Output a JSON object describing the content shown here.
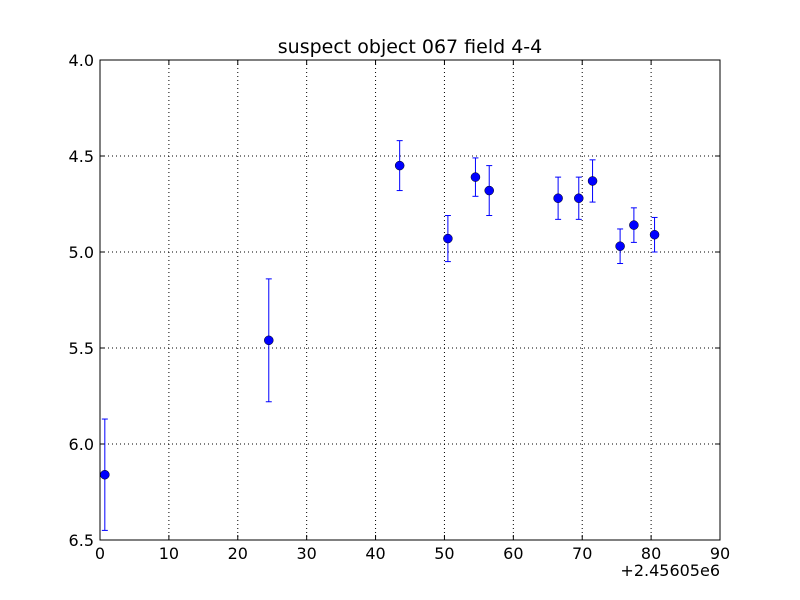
{
  "chart_data": {
    "type": "scatter",
    "title": "suspect object 067 field 4-4",
    "xlabel": "",
    "ylabel": "",
    "x_offset_label": "+2.45605e6",
    "xlim": [
      0,
      90
    ],
    "ylim": [
      4.0,
      6.5
    ],
    "y_inverted": true,
    "grid": true,
    "x_ticks": [
      0,
      10,
      20,
      30,
      40,
      50,
      60,
      70,
      80,
      90
    ],
    "x_tick_labels": [
      "0",
      "10",
      "20",
      "30",
      "40",
      "50",
      "60",
      "70",
      "80",
      "90"
    ],
    "y_ticks": [
      4.0,
      4.5,
      5.0,
      5.5,
      6.0,
      6.5
    ],
    "y_tick_labels": [
      "4.0",
      "4.5",
      "5.0",
      "5.5",
      "6.0",
      "6.5"
    ],
    "marker_color": "#0000ff",
    "points": [
      {
        "x": 0.7,
        "y": 6.16,
        "err": 0.29
      },
      {
        "x": 24.5,
        "y": 5.46,
        "err": 0.32
      },
      {
        "x": 43.5,
        "y": 4.55,
        "err": 0.13
      },
      {
        "x": 50.5,
        "y": 4.93,
        "err": 0.12
      },
      {
        "x": 54.5,
        "y": 4.61,
        "err": 0.1
      },
      {
        "x": 56.5,
        "y": 4.68,
        "err": 0.13
      },
      {
        "x": 66.5,
        "y": 4.72,
        "err": 0.11
      },
      {
        "x": 69.5,
        "y": 4.72,
        "err": 0.11
      },
      {
        "x": 71.5,
        "y": 4.63,
        "err": 0.11
      },
      {
        "x": 75.5,
        "y": 4.97,
        "err": 0.09
      },
      {
        "x": 77.5,
        "y": 4.86,
        "err": 0.09
      },
      {
        "x": 80.5,
        "y": 4.91,
        "err": 0.09
      }
    ]
  }
}
